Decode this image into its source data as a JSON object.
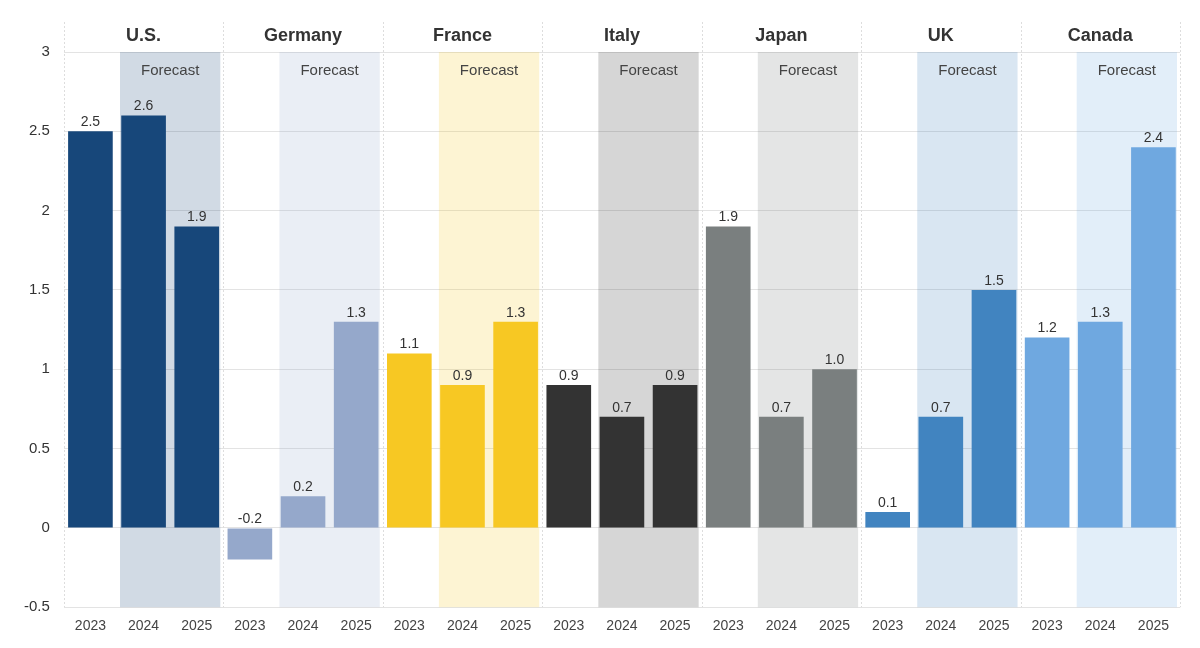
{
  "chart_data": {
    "type": "bar",
    "categories": [
      "2023",
      "2024",
      "2025"
    ],
    "series": [
      {
        "name": "U.S.",
        "color": "#17477a",
        "values": [
          2.5,
          2.6,
          1.9
        ]
      },
      {
        "name": "Germany",
        "color": "#95a8cb",
        "values": [
          -0.2,
          0.2,
          1.3
        ]
      },
      {
        "name": "France",
        "color": "#f7c823",
        "values": [
          1.1,
          0.9,
          1.3
        ]
      },
      {
        "name": "Italy",
        "color": "#333333",
        "values": [
          0.9,
          0.7,
          0.9
        ]
      },
      {
        "name": "Japan",
        "color": "#7a7f7f",
        "values": [
          1.9,
          0.7,
          1.0
        ],
        "value_labels": [
          "1.9",
          "0.7",
          "1.0"
        ]
      },
      {
        "name": "UK",
        "color": "#4184c0",
        "values": [
          0.1,
          0.7,
          1.5
        ]
      },
      {
        "name": "Canada",
        "color": "#6fa8e0",
        "values": [
          1.2,
          1.3,
          2.4
        ]
      }
    ],
    "forecast": {
      "label": "Forecast",
      "categories": [
        "2024",
        "2025"
      ]
    },
    "ylim": [
      -0.5,
      3
    ],
    "yticks": [
      -0.5,
      0,
      0.5,
      1,
      1.5,
      2,
      2.5,
      3
    ],
    "grid": true,
    "data_labels": true
  }
}
